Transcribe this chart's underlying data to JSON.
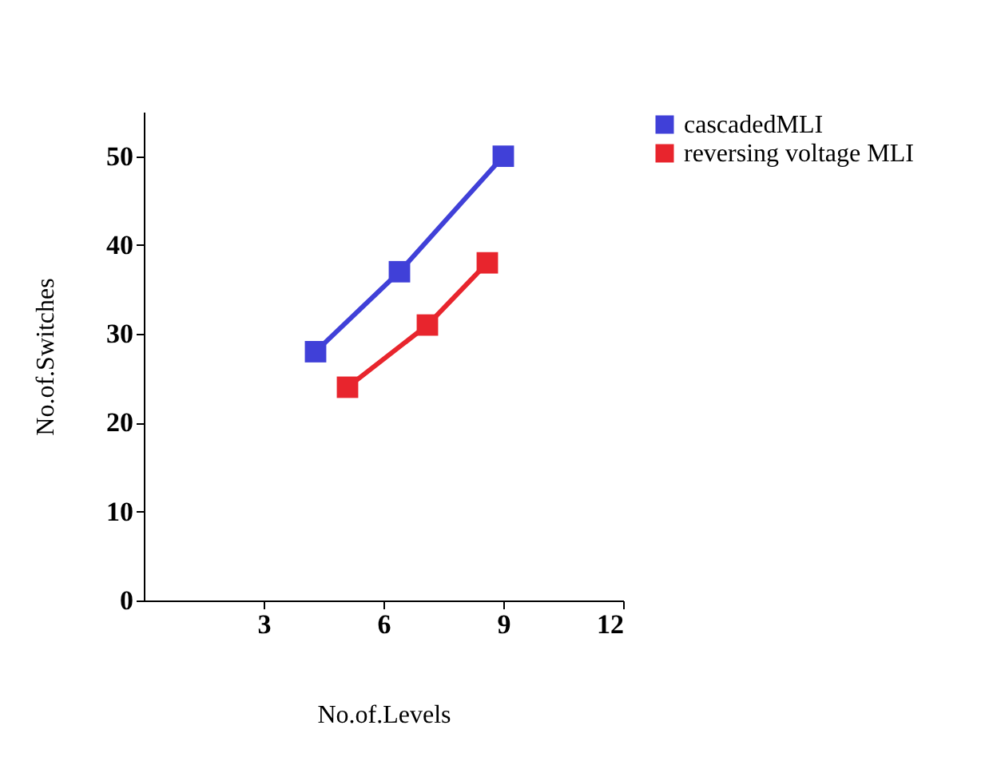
{
  "chart_data": {
    "type": "line",
    "xlabel": "No.of.Levels",
    "ylabel": "No.of.Switches",
    "xlim": [
      0,
      12
    ],
    "xticks": [
      3,
      6,
      9,
      12
    ],
    "ylim": [
      0,
      55
    ],
    "yticks": [
      0,
      10,
      20,
      30,
      40,
      50
    ],
    "marker": "square",
    "line_style": "solid",
    "grid": false,
    "legend": "right",
    "series": [
      {
        "name": "cascadedMLI",
        "color": "#4040d8",
        "x": [
          4.3,
          6.4,
          9
        ],
        "values": [
          28,
          37,
          50
        ]
      },
      {
        "name": "reversing voltage MLI",
        "color": "#e8252d",
        "x": [
          5.1,
          7.1,
          8.6
        ],
        "values": [
          24,
          31,
          38
        ]
      }
    ]
  }
}
